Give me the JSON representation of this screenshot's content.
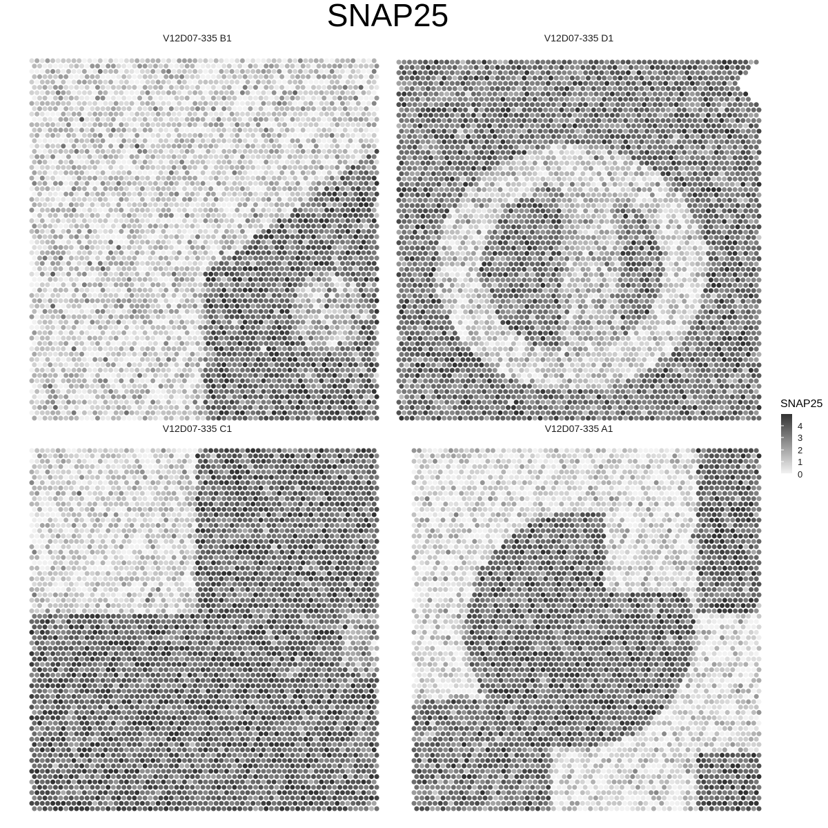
{
  "chart_data": {
    "type": "heatmap",
    "subtype": "spatial-spot-expression",
    "title": "SNAP25",
    "gene": "SNAP25",
    "legend": {
      "title": "SNAP25",
      "ticks": [
        "4",
        "3",
        "2",
        "1",
        "0"
      ],
      "range": [
        0,
        4.5
      ],
      "low_color": "#f2f2f2",
      "high_color": "#333333",
      "placement": "right"
    },
    "grid": false,
    "panels": [
      {
        "title": "V12D07-335  B1",
        "grid_rows": 68,
        "grid_cols": 66,
        "expression_pattern": {
          "kind": "threshold-boundary",
          "description_levels": {
            "low_region_mean": 0.8,
            "high_region_mean": 3.2
          },
          "noise": 0.9
        }
      },
      {
        "title": "V12D07-335  D1",
        "grid_rows": 68,
        "grid_cols": 68,
        "expression_pattern": {
          "kind": "ring",
          "description_levels": {
            "background_mean": 3.0,
            "ring_low_mean": 0.9
          },
          "noise": 0.8
        }
      },
      {
        "title": "V12D07-335  C1",
        "grid_rows": 68,
        "grid_cols": 66,
        "expression_pattern": {
          "kind": "top-left-low",
          "description_levels": {
            "low_region_mean": 0.7,
            "high_region_mean": 3.3
          },
          "noise": 0.8
        }
      },
      {
        "title": "V12D07-335  A1",
        "grid_rows": 68,
        "grid_cols": 66,
        "expression_pattern": {
          "kind": "swirl",
          "description_levels": {
            "high_mean": 3.4,
            "low_mean": 0.6
          },
          "noise": 0.8
        }
      }
    ]
  }
}
